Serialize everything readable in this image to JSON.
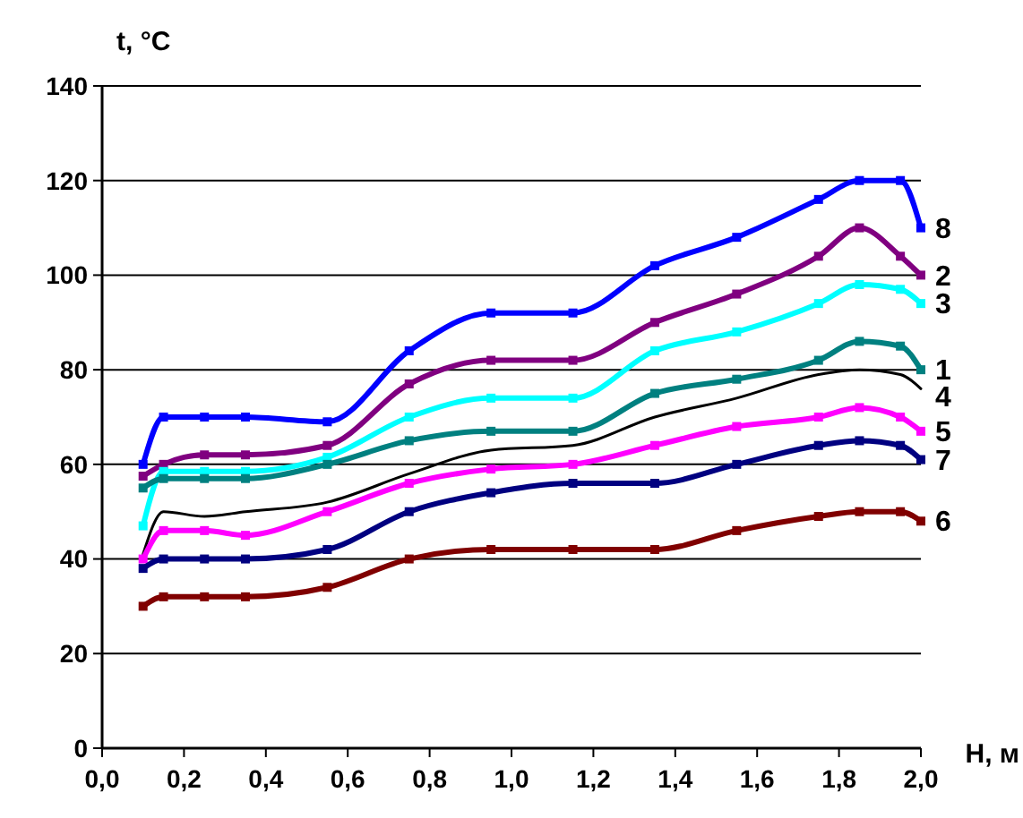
{
  "chart_data": {
    "type": "line",
    "xlabel": "H, м",
    "ylabel": "t, °C",
    "x": [
      0.1,
      0.15,
      0.25,
      0.35,
      0.55,
      0.75,
      0.95,
      1.15,
      1.35,
      1.55,
      1.75,
      1.85,
      1.95,
      2.0
    ],
    "xlim": [
      0,
      2
    ],
    "xticks": [
      {
        "value": 0,
        "label": "0,0"
      },
      {
        "value": 0.2,
        "label": "0,2"
      },
      {
        "value": 0.4,
        "label": "0,4"
      },
      {
        "value": 0.6,
        "label": "0,6"
      },
      {
        "value": 0.8,
        "label": "0,8"
      },
      {
        "value": 1,
        "label": "1,0"
      },
      {
        "value": 1.2,
        "label": "1,2"
      },
      {
        "value": 1.4,
        "label": "1,4"
      },
      {
        "value": 1.6,
        "label": "1,6"
      },
      {
        "value": 1.8,
        "label": "1,8"
      },
      {
        "value": 2,
        "label": "2,0"
      }
    ],
    "ylim": [
      0,
      140
    ],
    "yticks": [
      0,
      20,
      40,
      60,
      80,
      100,
      120,
      140
    ],
    "grid": "y",
    "marker": "square",
    "line_style": "solid",
    "legend": false,
    "series": [
      {
        "name": "8",
        "color": "#0000ff",
        "values": [
          60,
          70,
          70,
          70,
          69,
          84,
          92,
          92,
          102,
          108,
          116,
          120,
          120,
          110
        ]
      },
      {
        "name": "2",
        "color": "#800080",
        "values": [
          57.5,
          60,
          62,
          62,
          64,
          77,
          82,
          82,
          90,
          96,
          104,
          110,
          104,
          100
        ]
      },
      {
        "name": "3",
        "color": "#00ffff",
        "values": [
          47,
          58.5,
          58.5,
          58.5,
          61.5,
          70,
          74,
          74,
          84,
          88,
          94,
          98,
          97,
          94
        ]
      },
      {
        "name": "1",
        "color": "#008080",
        "values": [
          55,
          57,
          57,
          57,
          60,
          65,
          67,
          67,
          75,
          78,
          82,
          86,
          85,
          80
        ]
      },
      {
        "name": "4",
        "color": "#000000",
        "marker": "none",
        "values": [
          41,
          50,
          49,
          50,
          52,
          58,
          63,
          64,
          70,
          74,
          79,
          80,
          79,
          76
        ]
      },
      {
        "name": "5",
        "color": "#ff00ff",
        "values": [
          40,
          46,
          46,
          45,
          50,
          56,
          59,
          60,
          64,
          68,
          70,
          72,
          70,
          67
        ]
      },
      {
        "name": "7",
        "color": "#000080",
        "values": [
          38,
          40,
          40,
          40,
          42,
          50,
          54,
          56,
          56,
          60,
          64,
          65,
          64,
          61
        ]
      },
      {
        "name": "6",
        "color": "#800000",
        "values": [
          30,
          32,
          32,
          32,
          34,
          40,
          42,
          42,
          42,
          46,
          49,
          50,
          50,
          48
        ]
      }
    ]
  }
}
